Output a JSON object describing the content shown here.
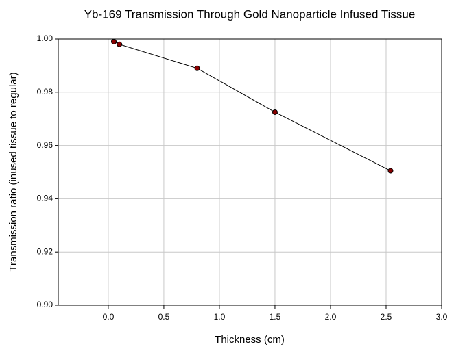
{
  "chart_data": {
    "type": "line",
    "title": "Yb-169 Transmission Through Gold Nanoparticle Infused Tissue",
    "x_label": "Thickness (cm)",
    "y_label": "Transmission ratio (inused tissue to regular)",
    "x": [
      0.05,
      0.1,
      0.8,
      1.5,
      2.54
    ],
    "series": [
      {
        "name": "Transmission ratio",
        "color": "#8b0000",
        "values": [
          0.999,
          0.998,
          0.989,
          0.9725,
          0.9505
        ]
      }
    ],
    "xlim": [
      -0.45,
      3.0
    ],
    "xticks": [
      {
        "value": 0,
        "label": "0.0"
      },
      {
        "value": 0.5,
        "label": "0.5"
      },
      {
        "value": 1,
        "label": "1.0"
      },
      {
        "value": 1.5,
        "label": "1.5"
      },
      {
        "value": 2,
        "label": "2.0"
      },
      {
        "value": 2.5,
        "label": "2.5"
      },
      {
        "value": 3,
        "label": "3.0"
      }
    ],
    "ylim": [
      0.9,
      1.0
    ],
    "yticks": [
      {
        "value": 0.9,
        "label": "0.90"
      },
      {
        "value": 0.92,
        "label": "0.92"
      },
      {
        "value": 0.94,
        "label": "0.94"
      },
      {
        "value": 0.96,
        "label": "0.96"
      },
      {
        "value": 0.98,
        "label": "0.98"
      },
      {
        "value": 1.0,
        "label": "1.00"
      }
    ],
    "grid": true
  }
}
